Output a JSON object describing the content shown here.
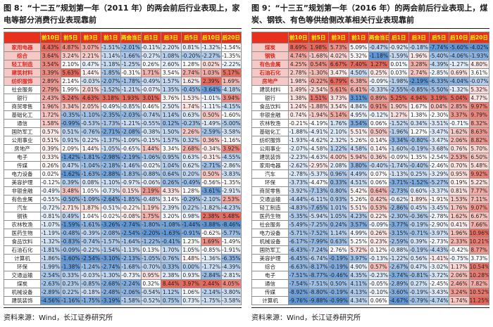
{
  "colors": {
    "header_bg": "#e7301e",
    "header_text": "#ffff00",
    "cell_max_red": "#e8685c",
    "cell_mid": "#ffffff",
    "cell_min_blue": "#5e97d8",
    "highlight_label_bg": "#f6c9c6",
    "highlight_label_text": "#d92a20",
    "normal_label_bg": "#ffffff",
    "normal_label_text": "#1f1f1f"
  },
  "chart_data": [
    {
      "type": "heatmap",
      "title": "图 8：“十二五”规划第一年（2011 年）的两会前后行业表现上，家电等部分消费行业表现靠前",
      "source": "资料来源：Wind，长江证券研究所",
      "value_format": "percent",
      "legend_note": "column-wise red(high)/white(mid)/blue(low) scale",
      "columns": [
        "前10日",
        "前5日",
        "前3日",
        "前1日",
        "两会当日",
        "后1日",
        "后3日",
        "后5日",
        "后10日",
        "后20日"
      ],
      "rows": [
        {
          "label": "家用电器",
          "highlight": true,
          "values": [
            4.43,
            4.87,
            3.07,
            -1.51,
            -2.01,
            -0.11,
            2.2,
            0.81,
            -1.32,
            -1.54
          ]
        },
        {
          "label": "综合",
          "highlight": true,
          "values": [
            3.64,
            3.24,
            2.21,
            -1.14,
            -1.66,
            -0.27,
            1.08,
            -0.2,
            -2.27,
            -1.35
          ]
        },
        {
          "label": "轻工制造",
          "highlight": true,
          "values": [
            3.54,
            2.1,
            0.47,
            -1.18,
            -1.25,
            0.26,
            2.6,
            1.28,
            0.02,
            -2.22
          ]
        },
        {
          "label": "建筑材料",
          "highlight": true,
          "values": [
            3.39,
            5.63,
            1.44,
            -1.85,
            -0.31,
            1.71,
            3.54,
            2.74,
            1.03,
            5.17
          ]
        },
        {
          "label": "纺织服饰",
          "highlight": true,
          "values": [
            2.89,
            2.14,
            -0.03,
            -2.07,
            -1.78,
            -0.49,
            1.57,
            1.62,
            2.39,
            1.69
          ]
        },
        {
          "label": "社会服务",
          "highlight": false,
          "values": [
            2.79,
            1.99,
            2.01,
            -1.52,
            -1.21,
            -0.07,
            1.35,
            -0.45,
            -3.64,
            -4.18
          ]
        },
        {
          "label": "银行",
          "highlight": false,
          "values": [
            2.43,
            5.24,
            4.63,
            3.18,
            1.93,
            3.01,
            3.76,
            1.53,
            -1.01,
            3.94
          ]
        },
        {
          "label": "商贸零售",
          "highlight": false,
          "values": [
            1.96,
            3.34,
            2.05,
            -0.49,
            -0.85,
            0.46,
            2.5,
            1.74,
            -1.11,
            -4.15
          ]
        },
        {
          "label": "基础化工",
          "highlight": false,
          "values": [
            1.72,
            -0.35,
            -1.1,
            -2.35,
            -2.03,
            -0.74,
            1.14,
            0.63,
            0.5,
            -1.6
          ]
        },
        {
          "label": "通信",
          "highlight": false,
          "values": [
            1.58,
            -0.99,
            -0.53,
            -1.73,
            -1.21,
            -0.55,
            0.12,
            -0.23,
            -1.49,
            -5.0
          ]
        },
        {
          "label": "国防军工",
          "highlight": false,
          "values": [
            0.57,
            0.51,
            -0.76,
            -2.71,
            -2.08,
            -0.38,
            1.5,
            2.26,
            -2.59,
            -3.58
          ]
        },
        {
          "label": "公用事业",
          "highlight": false,
          "values": [
            0.51,
            0.91,
            0.22,
            -1.37,
            -1.09,
            -0.15,
            1.57,
            0.32,
            0.36,
            -1.16
          ]
        },
        {
          "label": "房地产",
          "highlight": false,
          "values": [
            0.39,
            2.09,
            1.44,
            -1.05,
            -0.65,
            1.44,
            3.34,
            2.68,
            -0.34,
            3.92
          ]
        },
        {
          "label": "电子",
          "highlight": false,
          "values": [
            0.33,
            -1.42,
            -1.81,
            -2.98,
            -2.19,
            -1.06,
            0.95,
            0.63,
            -0.31,
            -4.55
          ]
        },
        {
          "label": "传媒",
          "highlight": false,
          "values": [
            0.26,
            0.47,
            -1.04,
            -2.18,
            -1.46,
            -0.02,
            1.04,
            0.62,
            -2.71,
            -2.86
          ]
        },
        {
          "label": "电力设备",
          "highlight": false,
          "values": [
            0.02,
            -1.62,
            -1.63,
            -2.88,
            -1.83,
            -0.88,
            0.64,
            0.2,
            0.5,
            -3.83
          ]
        },
        {
          "label": "美容护理",
          "highlight": false,
          "values": [
            -0.12,
            0.39,
            0.08,
            -1.1,
            -0.97,
            -0.06,
            0.26,
            -0.49,
            -0.56,
            -1.35
          ]
        },
        {
          "label": "非银金融",
          "highlight": false,
          "values": [
            -0.49,
            3.48,
            1.05,
            -0.73,
            0.15,
            2.19,
            4.33,
            1.28,
            -3.61,
            -2.91
          ]
        },
        {
          "label": "有色金属",
          "highlight": false,
          "values": [
            -0.55,
            -0.5,
            -1.09,
            -2.64,
            -1.85,
            -0.48,
            3.14,
            -0.29,
            -2.1,
            2.53
          ]
        },
        {
          "label": "汽车",
          "highlight": false,
          "values": [
            -0.72,
            2.71,
            1.87,
            -0.51,
            -0.22,
            1.19,
            2.39,
            0.22,
            -1.82,
            -4.23
          ]
        },
        {
          "label": "钢铁",
          "highlight": false,
          "values": [
            -0.81,
            0.49,
            1.04,
            -0.02,
            -0.08,
            1.75,
            3.2,
            0.98,
            2.38,
            5.48
          ]
        },
        {
          "label": "农林牧渔",
          "highlight": false,
          "values": [
            -1.07,
            -1.59,
            -1.61,
            -3.26,
            -2.74,
            -1.8,
            -1.08,
            -1.44,
            -3.88,
            -8.46
          ]
        },
        {
          "label": "医药生物",
          "highlight": false,
          "values": [
            -1.19,
            -0.48,
            -0.39,
            -2.08,
            -2.54,
            -2.2,
            -1.63,
            -0.91,
            -0.62,
            -5.77
          ]
        },
        {
          "label": "食品饮料",
          "highlight": false,
          "values": [
            -1.32,
            -0.83,
            -0.74,
            -1.57,
            -1.64,
            -1.22,
            -0.41,
            1.23,
            1.69,
            -1.49
          ]
        },
        {
          "label": "石油石化",
          "highlight": false,
          "values": [
            -1.81,
            -0.09,
            -0.22,
            -1.54,
            -1.13,
            0.13,
            1.7,
            1.05,
            -0.85,
            -1.91
          ]
        },
        {
          "label": "计算机",
          "highlight": false,
          "values": [
            -1.86,
            -1.6,
            -2.54,
            -3.1,
            -2.13,
            -1.05,
            0.76,
            1.48,
            -1.36,
            -6.35
          ]
        },
        {
          "label": "环保",
          "highlight": false,
          "values": [
            -1.99,
            -1.38,
            -1.24,
            -2.74,
            -1.68,
            -0.7,
            0.33,
            0.0,
            -1.72,
            -4.39
          ]
        },
        {
          "label": "交通运输",
          "highlight": false,
          "values": [
            -2.54,
            0.33,
            -0.03,
            -1.3,
            -0.73,
            0.95,
            2.38,
            0.93,
            -2.84,
            -2.81
          ]
        },
        {
          "label": "煤炭",
          "highlight": false,
          "values": [
            -2.63,
            0.23,
            -0.85,
            -2.68,
            -2.24,
            0.32,
            8.44,
            3.97,
            2.44,
            4.05
          ]
        },
        {
          "label": "机械设备",
          "highlight": false,
          "values": [
            -2.89,
            0.22,
            -0.18,
            -2.48,
            -2.06,
            -0.54,
            1.12,
            1.06,
            -2.14,
            -3.8
          ]
        },
        {
          "label": "建筑装饰",
          "highlight": false,
          "values": [
            -4.56,
            -1.16,
            -1.75,
            -3.19,
            -1.58,
            -0.52,
            0.75,
            0.73,
            -1.75,
            -3.58
          ]
        }
      ]
    },
    {
      "type": "heatmap",
      "title": "图 9：“十三五”规划第一年（2016 年）的两会前后行业表现上，煤炭、钢铁、有色等供给侧改革相关行业表现靠前",
      "source": "资料来源：Wind，长江证券研究所",
      "value_format": "percent",
      "legend_note": "column-wise red(high)/white(mid)/blue(low) scale",
      "columns": [
        "前10日",
        "前5日",
        "前3日",
        "前1日",
        "两会当日",
        "后1日",
        "后3日",
        "后5日",
        "后10日",
        "后20日"
      ],
      "rows": [
        {
          "label": "煤炭",
          "highlight": true,
          "values": [
            8.69,
            1.98,
            5.73,
            5.09,
            -0.47,
            -0.92,
            -0.18,
            -7.74,
            -5.6,
            -4.02
          ]
        },
        {
          "label": "钢铁",
          "highlight": true,
          "values": [
            4.74,
            -1.68,
            4.02,
            5.32,
            -1.18,
            -1.59,
            1.96,
            -5.4,
            -4.06,
            -1.93
          ]
        },
        {
          "label": "有色金属",
          "highlight": true,
          "values": [
            4.25,
            0.54,
            6.67,
            7.4,
            1.27,
            0.01,
            3.28,
            -4.39,
            -1.27,
            4.8
          ]
        },
        {
          "label": "石油石化",
          "highlight": true,
          "values": [
            2.78,
            -1.3,
            3.47,
            4.5,
            0.25,
            0.03,
            2.74,
            -2.85,
            0.69,
            3.61
          ]
        },
        {
          "label": "房地产",
          "highlight": true,
          "values": [
            1.98,
            -0.22,
            6.79,
            6.38,
            -0.09,
            -1.98,
            -2.19,
            -6.33,
            -4.04,
            -0.07
          ]
        },
        {
          "label": "建筑材料",
          "highlight": false,
          "values": [
            1.49,
            -2.54,
            5.61,
            6.41,
            -0.33,
            -2.55,
            -0.85,
            -5.5,
            -1.32,
            5.32
          ]
        },
        {
          "label": "银行",
          "highlight": false,
          "values": [
            1.38,
            1.51,
            3.73,
            3.11,
            0.89,
            5.25,
            4.94,
            3.19,
            5.04,
            4.77
          ]
        },
        {
          "label": "食品饮料",
          "highlight": false,
          "values": [
            1.24,
            -1.88,
            3.54,
            4.84,
            0.91,
            1.9,
            1.67,
            0.04,
            2.85,
            9.97
          ]
        },
        {
          "label": "非银金融",
          "highlight": false,
          "values": [
            0.74,
            -1.94,
            5.14,
            4.95,
            -0.12,
            1.27,
            1.38,
            -2.3,
            3.37,
            9.79
          ]
        },
        {
          "label": "农林牧渔",
          "highlight": false,
          "values": [
            -0.21,
            -4.19,
            1.76,
            3.54,
            0.06,
            -1.52,
            0.34,
            -3.51,
            -0.71,
            8.32
          ]
        },
        {
          "label": "基础化工",
          "highlight": false,
          "values": [
            -1.88,
            -4.91,
            2.1,
            5.51,
            0.5,
            -1.96,
            1.27,
            -3.47,
            1.62,
            8.63
          ]
        },
        {
          "label": "纺织服饰",
          "highlight": false,
          "values": [
            -1.93,
            -4.62,
            2.32,
            5.26,
            0.14,
            -3.34,
            -0.8,
            -3.47,
            2.06,
            8.82
          ]
        },
        {
          "label": "公用事业",
          "highlight": false,
          "values": [
            -2.07,
            -4.58,
            1.22,
            4.58,
            0.14,
            -1.6,
            -0.19,
            -3.68,
            0.76,
            5.7
          ]
        },
        {
          "label": "建筑装饰",
          "highlight": false,
          "values": [
            -2.23,
            -4.63,
            4.0,
            5.94,
            0.36,
            -0.09,
            1.35,
            -2.54,
            2.53,
            6.5
          ]
        },
        {
          "label": "家用电器",
          "highlight": false,
          "values": [
            -2.62,
            -2.95,
            2.08,
            3.8,
            -0.4,
            -1.74,
            -0.4,
            -2.46,
            0.7,
            5.48
          ]
        },
        {
          "label": "汽车",
          "highlight": false,
          "values": [
            -2.78,
            -5.37,
            0.96,
            4.49,
            0.07,
            -1.13,
            0.25,
            -3.29,
            0.95,
            9.92
          ]
        },
        {
          "label": "环保",
          "highlight": false,
          "values": [
            -3.73,
            -4.47,
            0.33,
            4.51,
            0.06,
            -3.71,
            -1.52,
            -5.27,
            0.19,
            5.22
          ]
        },
        {
          "label": "商贸零售",
          "highlight": false,
          "values": [
            -3.92,
            -7.13,
            0.8,
            5.42,
            0.64,
            -2.73,
            0.6,
            -3.37,
            0.81,
            7.77
          ]
        },
        {
          "label": "交通运输",
          "highlight": false,
          "values": [
            -4.44,
            -6.11,
            0.93,
            5.26,
            0.42,
            -0.62,
            1.89,
            -1.91,
            1.53,
            7.11
          ]
        },
        {
          "label": "轻工制造",
          "highlight": false,
          "values": [
            -4.83,
            -7.65,
            1.01,
            5.51,
            0.53,
            -2.86,
            0.45,
            -3.45,
            1.76,
            9.07
          ]
        },
        {
          "label": "医药生物",
          "highlight": false,
          "values": [
            -5.35,
            -5.94,
            1.05,
            4.23,
            0.22,
            -2.3,
            -0.36,
            -2.78,
            1.62,
            6.67
          ]
        },
        {
          "label": "社会服务",
          "highlight": false,
          "values": [
            -5.49,
            -7.25,
            0.24,
            3.57,
            -0.09,
            -3.77,
            -0.19,
            -2.9,
            0.41,
            7.66
          ]
        },
        {
          "label": "电力设备",
          "highlight": false,
          "values": [
            -5.71,
            -7.52,
            1.14,
            4.99,
            0.26,
            -3.15,
            -0.71,
            -3.97,
            1.96,
            10.96
          ]
        },
        {
          "label": "机械设备",
          "highlight": false,
          "values": [
            -6.17,
            -7.99,
            0.63,
            5.25,
            0.23,
            -2.59,
            0.39,
            -2.73,
            2.33,
            10.21
          ]
        },
        {
          "label": "国防军工",
          "highlight": false,
          "values": [
            -6.43,
            -7.24,
            2.76,
            5.72,
            0.12,
            -0.88,
            -0.19,
            -4.43,
            -0.42,
            8.77
          ]
        },
        {
          "label": "美容护理",
          "highlight": false,
          "values": [
            -6.45,
            -6.74,
            -0.19,
            3.97,
            -0.13,
            -1.22,
            0.56,
            -1.41,
            -0.75,
            3.73
          ]
        },
        {
          "label": "综合",
          "highlight": false,
          "values": [
            -6.63,
            -8.17,
            -0.19,
            4.9,
            0.57,
            -2.67,
            0.47,
            -3.02,
            1.17,
            10.54
          ]
        },
        {
          "label": "电子",
          "highlight": false,
          "values": [
            -7.51,
            -8.77,
            -0.46,
            4.35,
            -0.23,
            -3.74,
            -0.81,
            -3.72,
            2.06,
            10.28
          ]
        },
        {
          "label": "通信",
          "highlight": false,
          "values": [
            -7.54,
            -7.51,
            0.5,
            4.11,
            -0.05,
            -2.89,
            0.27,
            -2.45,
            2.46,
            7.82
          ]
        },
        {
          "label": "传媒",
          "highlight": false,
          "values": [
            -8.92,
            -8.8,
            -0.19,
            4.13,
            -0.1,
            -3.6,
            -0.19,
            -3.43,
            3.24,
            10.52
          ]
        },
        {
          "label": "计算机",
          "highlight": false,
          "values": [
            -9.76,
            -9.88,
            -0.99,
            4.34,
            0.06,
            -4.67,
            -0.79,
            -4.74,
            1.74,
            11.25
          ]
        }
      ]
    }
  ]
}
